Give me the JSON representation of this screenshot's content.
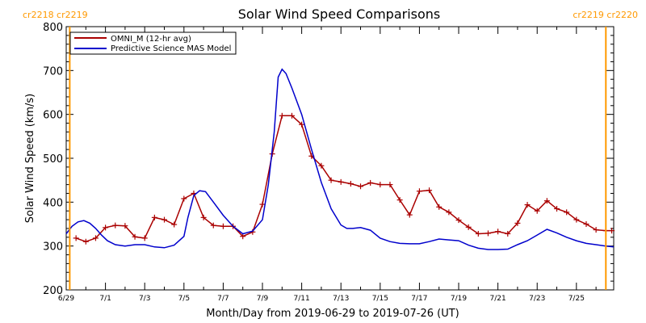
{
  "chart_data": {
    "type": "line",
    "title": "Solar Wind Speed Comparisons",
    "xlabel": "Month/Day from 2019-06-29 to 2019-07-26 (UT)",
    "ylabel": "Solar Wind Speed (km/s)",
    "ylim": [
      200,
      800
    ],
    "xlim": [
      0,
      27.9
    ],
    "yticks": [
      200,
      300,
      400,
      500,
      600,
      700,
      800
    ],
    "xticks": [
      {
        "x": 0,
        "label": "6/29"
      },
      {
        "x": 2,
        "label": "7/1"
      },
      {
        "x": 4,
        "label": "7/3"
      },
      {
        "x": 6,
        "label": "7/5"
      },
      {
        "x": 8,
        "label": "7/7"
      },
      {
        "x": 10,
        "label": "7/9"
      },
      {
        "x": 12,
        "label": "7/11"
      },
      {
        "x": 14,
        "label": "7/13"
      },
      {
        "x": 16,
        "label": "7/15"
      },
      {
        "x": 18,
        "label": "7/17"
      },
      {
        "x": 20,
        "label": "7/19"
      },
      {
        "x": 22,
        "label": "7/21"
      },
      {
        "x": 24,
        "label": "7/23"
      },
      {
        "x": 26,
        "label": "7/25"
      }
    ],
    "grid": false,
    "legend_position": "top-left",
    "rotation_labels": [
      {
        "side": "left",
        "text": "cr2218 cr2219"
      },
      {
        "side": "right",
        "text": "cr2219 cr2220"
      }
    ],
    "rotation_lines_x": [
      0.18,
      27.5
    ],
    "series": [
      {
        "name": "OMNI_M (12-hr avg)",
        "color": "#aa0000",
        "markers": true,
        "x": [
          0.5,
          1.0,
          1.5,
          2.0,
          2.5,
          3.0,
          3.5,
          4.0,
          4.5,
          5.0,
          5.5,
          6.0,
          6.5,
          7.0,
          7.5,
          8.0,
          8.5,
          9.0,
          9.5,
          10.0,
          10.5,
          11.0,
          11.5,
          12.0,
          12.5,
          13.0,
          13.5,
          14.0,
          14.5,
          15.0,
          15.5,
          16.0,
          16.5,
          17.0,
          17.5,
          18.0,
          18.5,
          19.0,
          19.5,
          20.0,
          20.5,
          21.0,
          21.5,
          22.0,
          22.5,
          23.0,
          23.5,
          24.0,
          24.5,
          25.0,
          25.5,
          26.0,
          26.5,
          27.0,
          27.5,
          27.8
        ],
        "y": [
          318,
          310,
          318,
          342,
          347,
          346,
          321,
          318,
          365,
          360,
          349,
          408,
          420,
          365,
          347,
          345,
          345,
          322,
          332,
          395,
          510,
          597,
          597,
          577,
          505,
          483,
          450,
          446,
          442,
          436,
          444,
          440,
          440,
          405,
          371,
          425,
          427,
          389,
          377,
          359,
          343,
          328,
          329,
          333,
          328,
          352,
          394,
          380,
          403,
          385,
          377,
          360,
          350,
          337,
          335,
          335
        ]
      },
      {
        "name": "Predictive Science MAS Model",
        "color": "#0000cc",
        "markers": false,
        "x": [
          0,
          0.3,
          0.6,
          0.9,
          1.2,
          1.5,
          1.8,
          2.1,
          2.5,
          3.0,
          3.5,
          4.0,
          4.5,
          5.0,
          5.5,
          6.0,
          6.2,
          6.5,
          6.8,
          7.1,
          7.5,
          8.0,
          8.5,
          9.0,
          9.5,
          10.0,
          10.3,
          10.6,
          10.8,
          11.0,
          11.2,
          11.5,
          12.0,
          12.5,
          13.0,
          13.5,
          14.0,
          14.3,
          14.6,
          15.0,
          15.5,
          16.0,
          16.5,
          17.0,
          17.5,
          18.0,
          18.5,
          19.0,
          19.5,
          20.0,
          20.5,
          21.0,
          21.5,
          22.0,
          22.5,
          23.0,
          23.5,
          24.0,
          24.5,
          25.0,
          25.5,
          26.0,
          26.5,
          27.0,
          27.5,
          27.9
        ],
        "y": [
          328,
          345,
          355,
          358,
          352,
          340,
          325,
          312,
          303,
          300,
          303,
          303,
          298,
          296,
          302,
          322,
          365,
          415,
          426,
          424,
          400,
          370,
          345,
          328,
          334,
          360,
          440,
          560,
          685,
          703,
          693,
          660,
          600,
          520,
          445,
          385,
          348,
          340,
          340,
          342,
          336,
          318,
          310,
          306,
          305,
          305,
          310,
          316,
          314,
          312,
          302,
          295,
          292,
          292,
          293,
          303,
          312,
          325,
          338,
          330,
          320,
          312,
          306,
          303,
          300,
          298
        ]
      }
    ]
  }
}
